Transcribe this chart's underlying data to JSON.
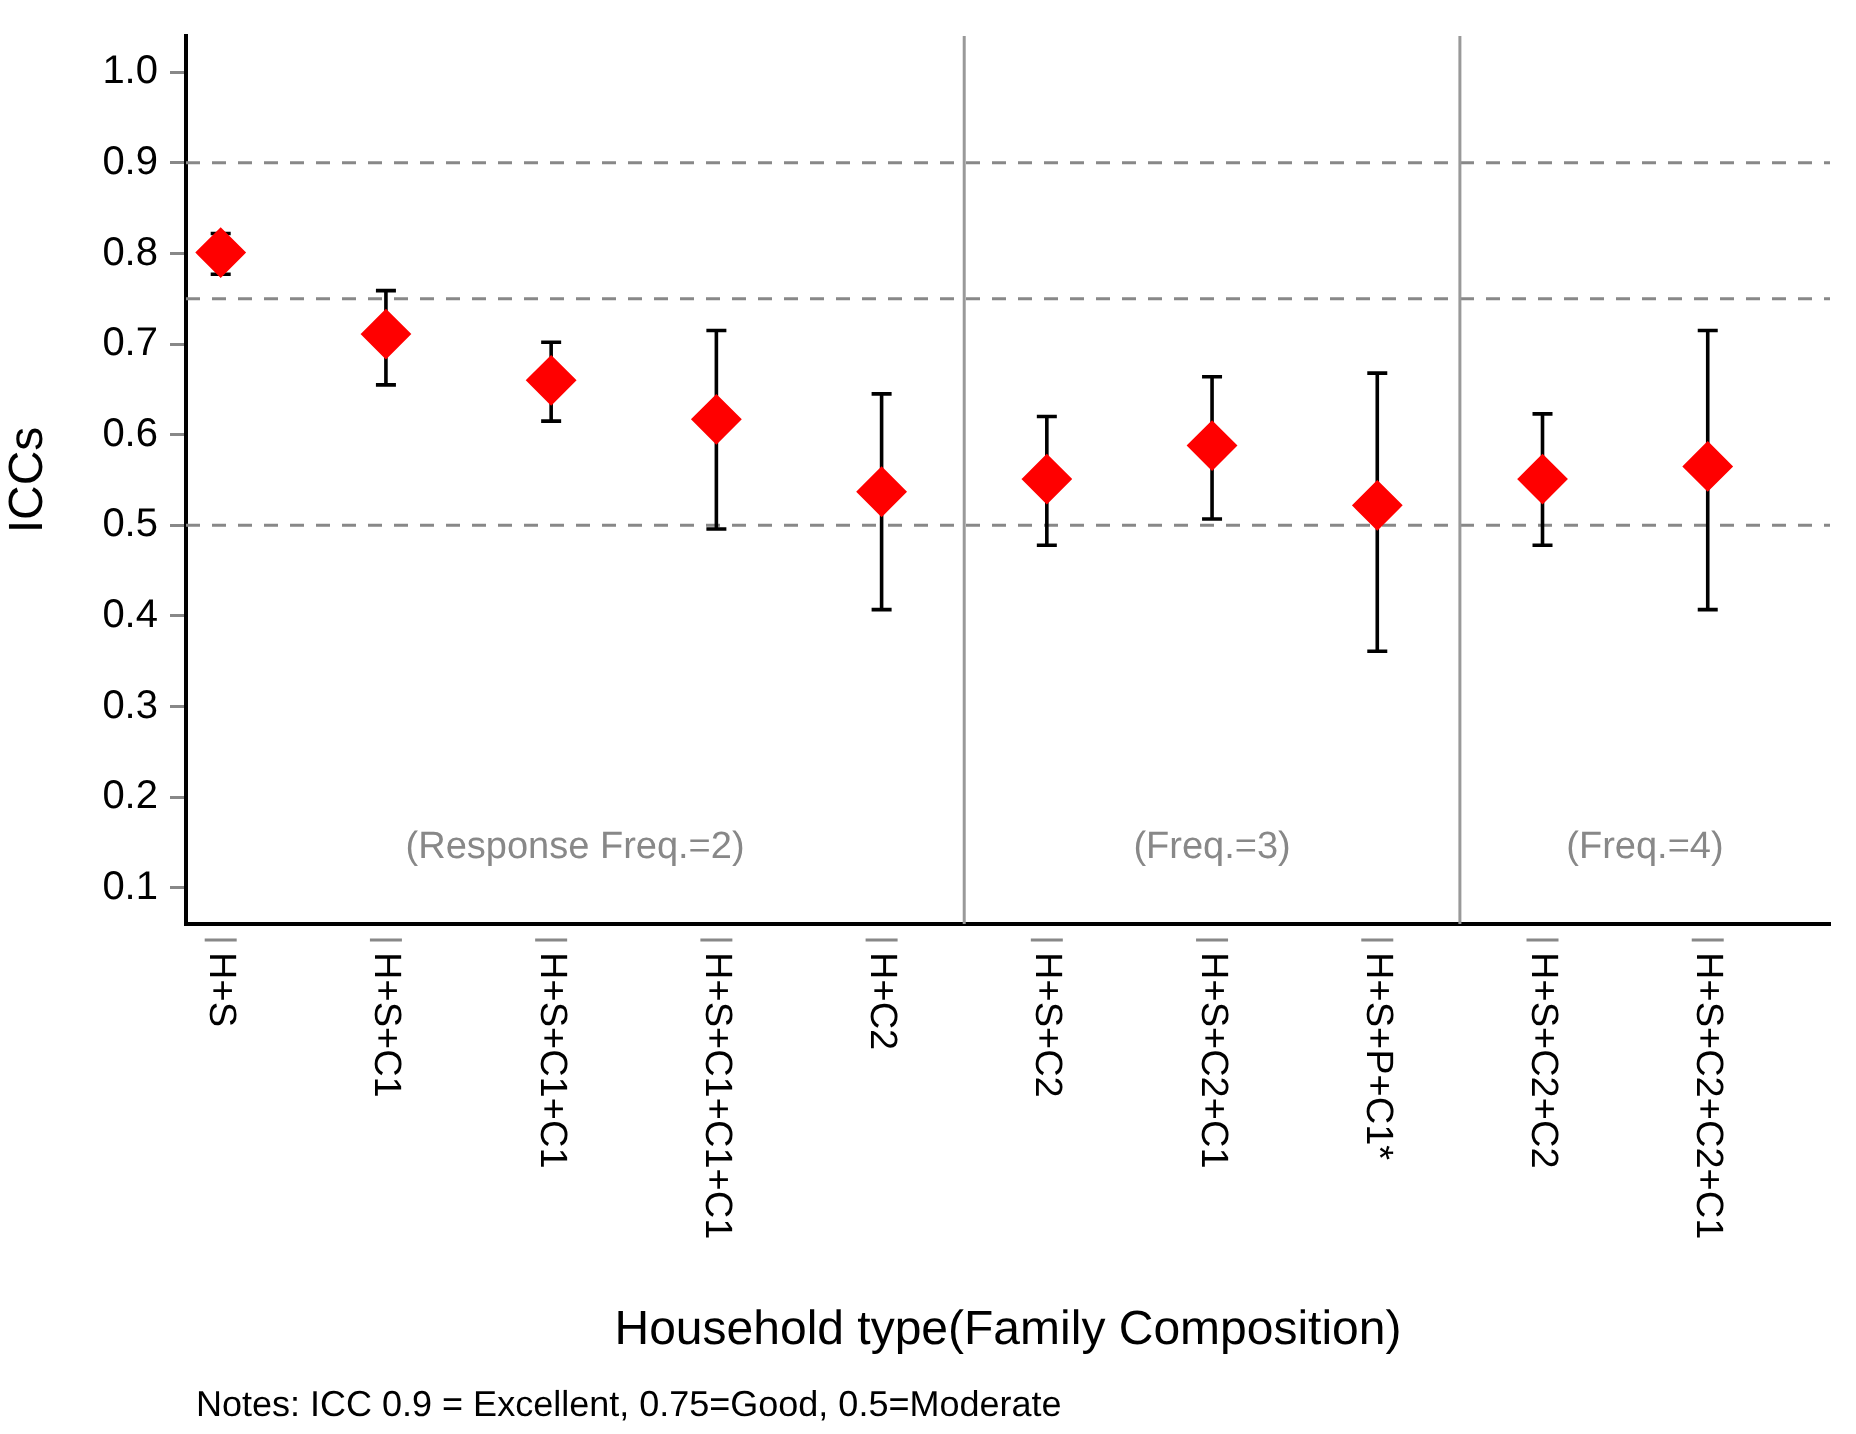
{
  "chart_data": {
    "type": "scatter",
    "xlabel": "Household type(Family Composition)",
    "ylabel": "ICCs",
    "categories": [
      "H+S",
      "H+S+C1",
      "H+S+C1+C1",
      "H+S+C1+C1+C1",
      "H+C2",
      "H+S+C2",
      "H+S+C2+C1",
      "H+S+P+C1*",
      "H+S+C2+C2",
      "H+S+C2+C2+C1"
    ],
    "values": [
      0.801,
      0.711,
      0.66,
      0.617,
      0.537,
      0.551,
      0.588,
      0.522,
      0.551,
      0.565
    ],
    "errors": [
      [
        0.777,
        0.822
      ],
      [
        0.655,
        0.759
      ],
      [
        0.615,
        0.702
      ],
      [
        0.496,
        0.715
      ],
      [
        0.407,
        0.645
      ],
      [
        0.478,
        0.62
      ],
      [
        0.507,
        0.664
      ],
      [
        0.361,
        0.668
      ],
      [
        0.478,
        0.623
      ],
      [
        0.407,
        0.715
      ]
    ],
    "color": "#ff0000",
    "marker": "diamond",
    "ylim": [
      0.06,
      1.04
    ],
    "yticks": [
      0.1,
      0.2,
      0.3,
      0.4,
      0.5,
      0.6,
      0.7,
      0.8,
      0.9,
      {
        "value": 1,
        "label": "1.0"
      }
    ],
    "grid": false,
    "ref_lines": [
      {
        "axis": "y",
        "value": 0.9,
        "color": "#888888",
        "line_style": "dashed"
      },
      {
        "axis": "y",
        "value": 0.75,
        "color": "#888888",
        "line_style": "dashed"
      },
      {
        "axis": "y",
        "value": 0.5,
        "color": "#888888",
        "line_style": "dashed"
      }
    ],
    "annotations": [
      "(Response Freq.=2)",
      "(Freq.=3)",
      "(Freq.=4)",
      "Notes: ICC 0.9 = Excellent, 0.75=Good, 0.5=Moderate"
    ]
  }
}
